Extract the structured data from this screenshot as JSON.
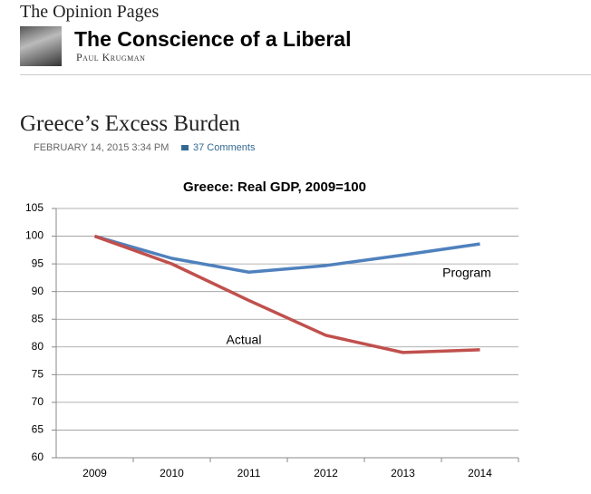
{
  "header": {
    "section": "The Opinion Pages",
    "blog_title": "The Conscience of a Liberal",
    "author": "Paul Krugman"
  },
  "post": {
    "title": "Greece’s Excess Burden",
    "date": "FEBRUARY 14, 2015 3:34 PM",
    "comments": "37 Comments"
  },
  "chart_data": {
    "type": "line",
    "title": "Greece: Real GDP, 2009=100",
    "categories": [
      "2009",
      "2010",
      "2011",
      "2012",
      "2013",
      "2014"
    ],
    "series": [
      {
        "name": "Program",
        "color": "#4f81bd",
        "values": [
          100,
          96,
          93.5,
          94.7,
          96.6,
          98.6
        ]
      },
      {
        "name": "Actual",
        "color": "#c0504d",
        "values": [
          100,
          95,
          88.4,
          82.1,
          79,
          79.5
        ]
      }
    ],
    "ylim": [
      60,
      105
    ],
    "yticks": [
      60,
      65,
      70,
      75,
      80,
      85,
      90,
      95,
      100,
      105
    ],
    "grid": true
  }
}
